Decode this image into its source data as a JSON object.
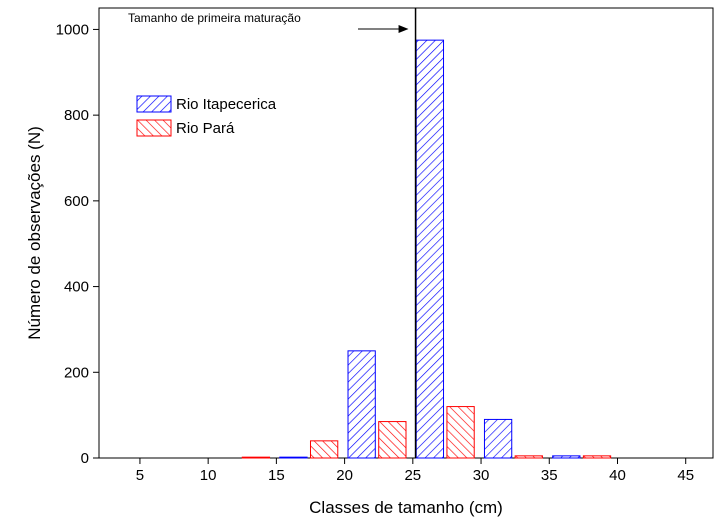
{
  "chart_data": {
    "type": "bar",
    "title": "",
    "xlabel": "Classes de tamanho (cm)",
    "ylabel": "Número de observações (N)",
    "xlim": [
      2,
      47
    ],
    "ylim": [
      0,
      1050
    ],
    "x_ticks": [
      5,
      10,
      15,
      20,
      25,
      30,
      35,
      40,
      45
    ],
    "y_ticks": [
      0,
      200,
      400,
      600,
      800,
      1000
    ],
    "grid": false,
    "legend_position": "upper-left",
    "bin_width": 5,
    "bins": [
      [
        5,
        10
      ],
      [
        10,
        15
      ],
      [
        15,
        20
      ],
      [
        20,
        25
      ],
      [
        25,
        30
      ],
      [
        30,
        35
      ],
      [
        35,
        40
      ],
      [
        40,
        45
      ]
    ],
    "series": [
      {
        "name": "Rio Itapecerica",
        "color": "#0000ff",
        "hatch": "diagonal-forward",
        "values": [
          0,
          0,
          2,
          250,
          975,
          90,
          5,
          0
        ]
      },
      {
        "name": "Rio Pará",
        "color": "#ff0000",
        "hatch": "diagonal-back",
        "values": [
          0,
          2,
          40,
          85,
          120,
          5,
          5,
          0
        ]
      }
    ],
    "annotations": [
      {
        "text": "Tamanho de primeira maturação",
        "vertical_line_x": 25.2,
        "arrow": true
      }
    ]
  }
}
